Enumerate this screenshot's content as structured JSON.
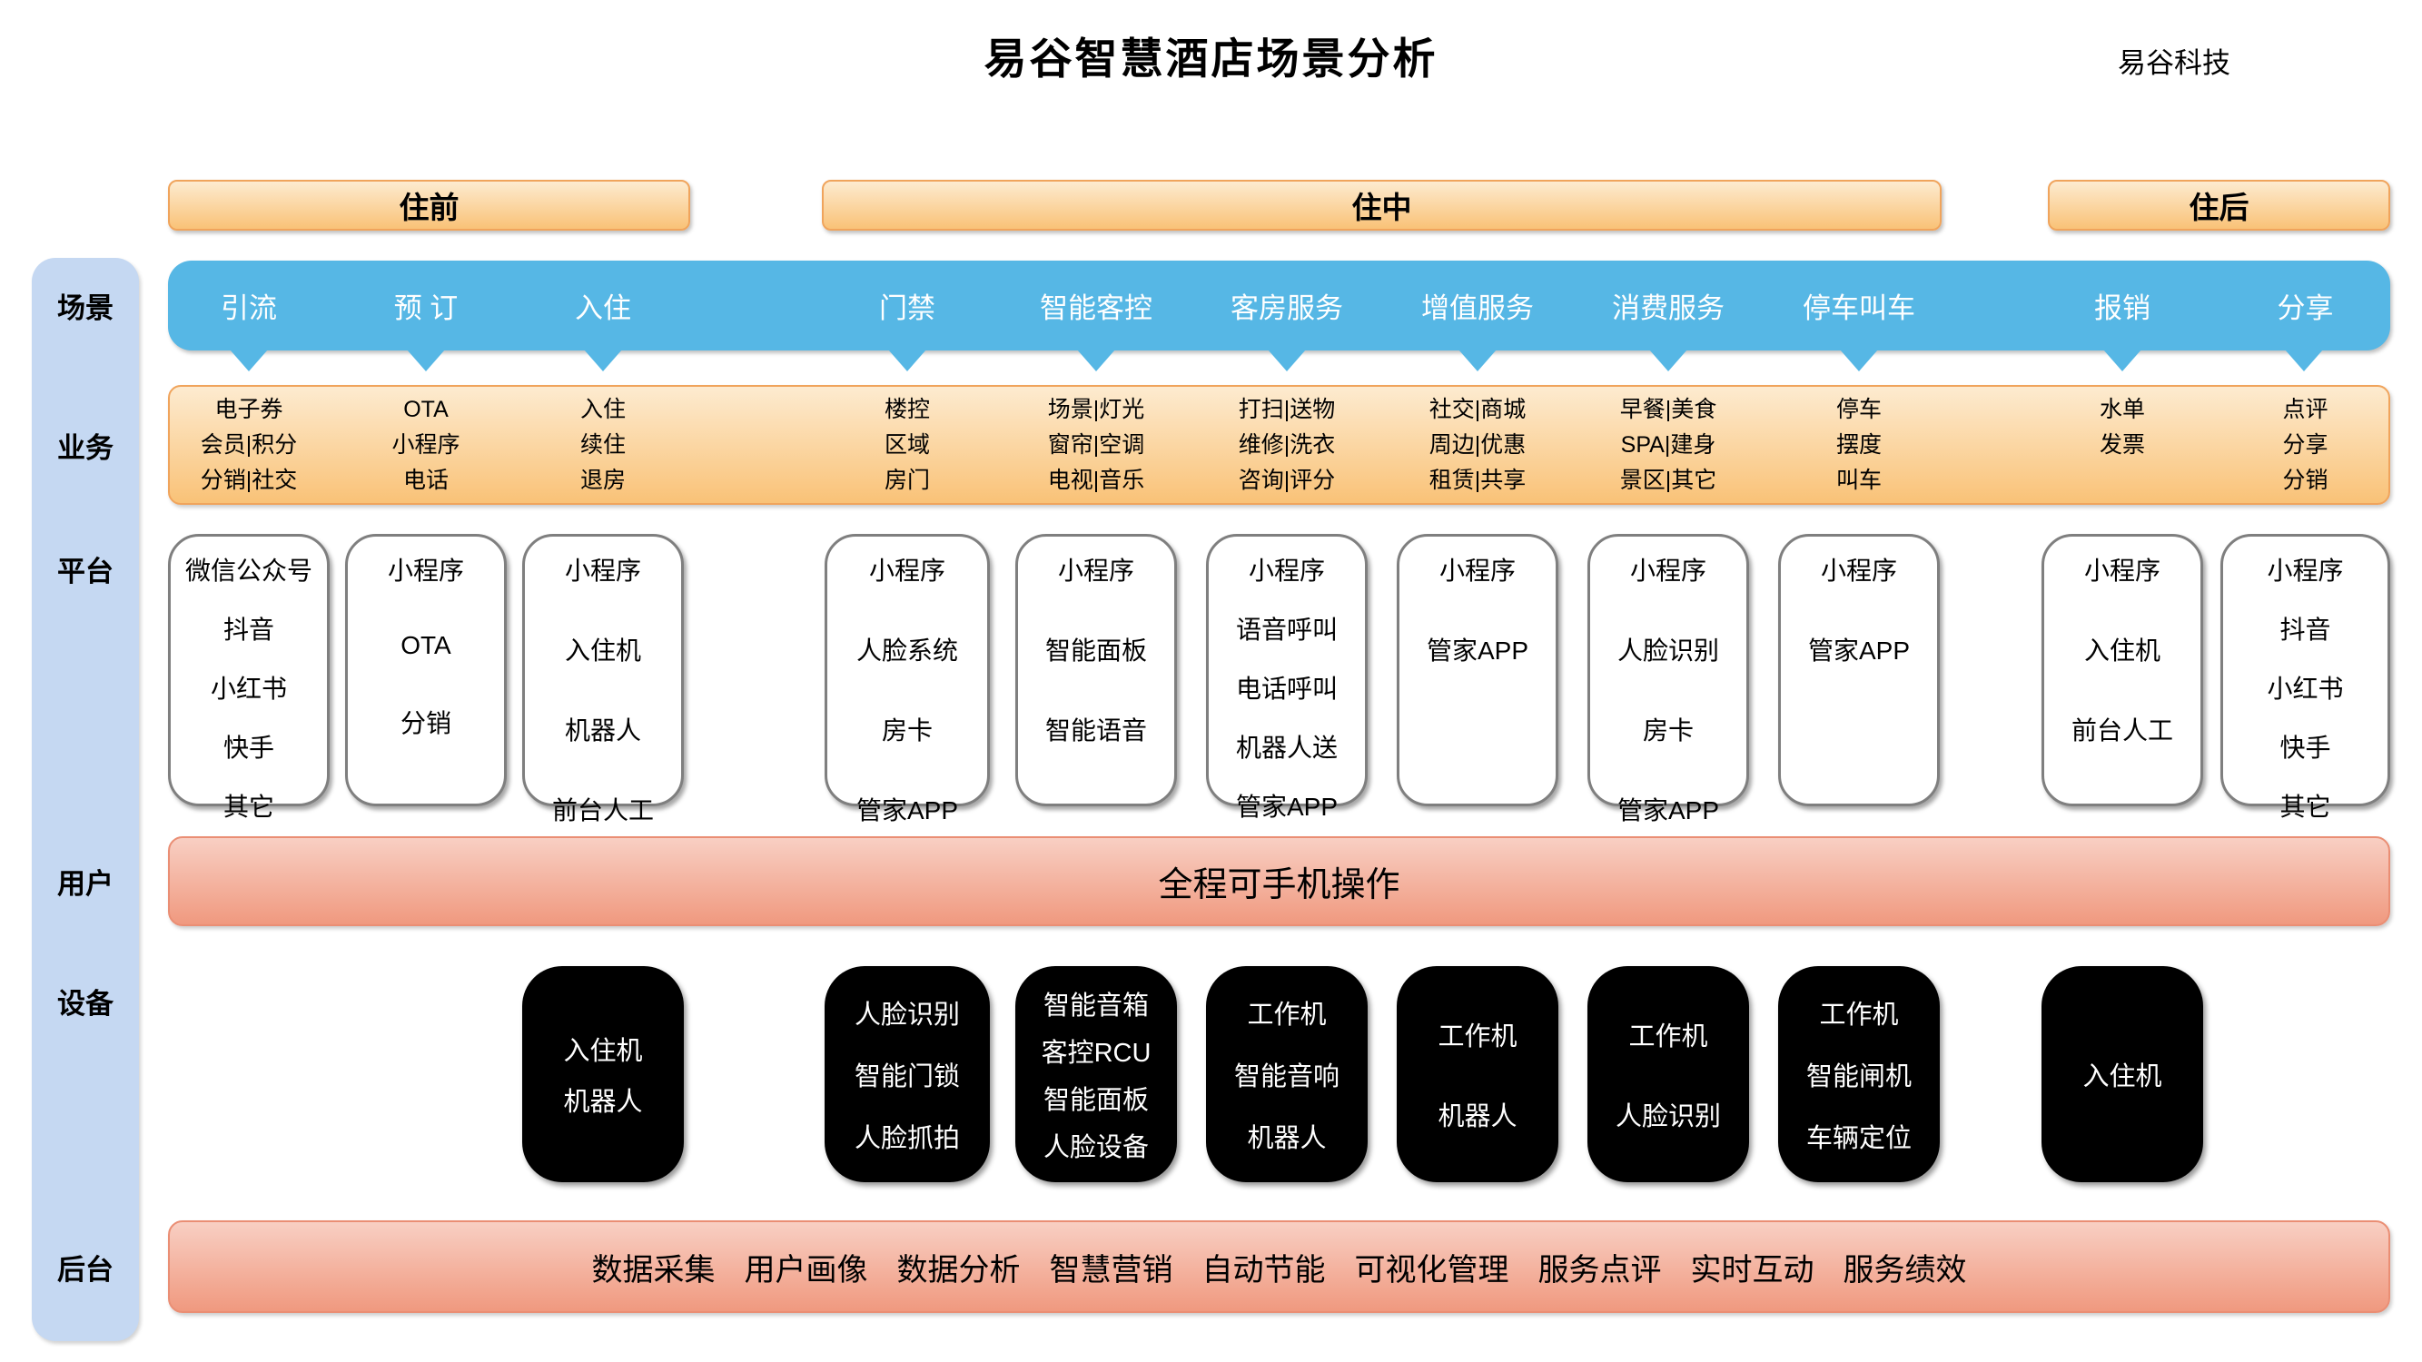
{
  "header": {
    "title": "易谷智慧酒店场景分析",
    "brand": "易谷科技"
  },
  "phases": [
    {
      "label": "住前"
    },
    {
      "label": "住中"
    },
    {
      "label": "住后"
    }
  ],
  "sidebar": {
    "rows": [
      "场景",
      "业务",
      "平台",
      "用户",
      "设备",
      "后台"
    ]
  },
  "scenarios": [
    "引流",
    "预 订",
    "入住",
    "门禁",
    "智能客控",
    "客房服务",
    "增值服务",
    "消费服务",
    "停车叫车",
    "报销",
    "分享"
  ],
  "business": [
    [
      "电子券",
      "会员|积分",
      "分销|社交"
    ],
    [
      "OTA",
      "小程序",
      "电话"
    ],
    [
      "入住",
      "续住",
      "退房"
    ],
    [
      "楼控",
      "区域",
      "房门"
    ],
    [
      "场景|灯光",
      "窗帘|空调",
      "电视|音乐"
    ],
    [
      "打扫|送物",
      "维修|洗衣",
      "咨询|评分"
    ],
    [
      "社交|商城",
      "周边|优惠",
      "租赁|共享"
    ],
    [
      "早餐|美食",
      "SPA|建身",
      "景区|其它"
    ],
    [
      "停车",
      "摆度",
      "叫车"
    ],
    [
      "水单",
      "发票"
    ],
    [
      "点评",
      "分享",
      "分销"
    ]
  ],
  "platforms": [
    [
      "微信公众号",
      "抖音",
      "小红书",
      "快手",
      "其它"
    ],
    [
      "小程序",
      "OTA",
      "分销"
    ],
    [
      "小程序",
      "入住机",
      "机器人",
      "前台人工"
    ],
    [
      "小程序",
      "人脸系统",
      "房卡",
      "管家APP"
    ],
    [
      "小程序",
      "智能面板",
      "智能语音"
    ],
    [
      "小程序",
      "语音呼叫",
      "电话呼叫",
      "机器人送",
      "管家APP"
    ],
    [
      "小程序",
      "管家APP"
    ],
    [
      "小程序",
      "人脸识别",
      "房卡",
      "管家APP"
    ],
    [
      "小程序",
      "管家APP"
    ],
    [
      "小程序",
      "入住机",
      "前台人工"
    ],
    [
      "小程序",
      "抖音",
      "小红书",
      "快手",
      "其它"
    ]
  ],
  "user_bar": "全程可手机操作",
  "devices": [
    [
      "入住机",
      "机器人"
    ],
    [
      "人脸识别",
      "智能门锁",
      "人脸抓拍"
    ],
    [
      "智能音箱",
      "客控RCU",
      "智能面板",
      "人脸设备"
    ],
    [
      "工作机",
      "智能音响",
      "机器人"
    ],
    [
      "工作机",
      "机器人"
    ],
    [
      "工作机",
      "人脸识别"
    ],
    [
      "工作机",
      "智能闸机",
      "车辆定位"
    ],
    [
      "入住机"
    ]
  ],
  "backend": [
    "数据采集",
    "用户画像",
    "数据分析",
    "智慧营销",
    "自动节能",
    "可视化管理",
    "服务点评",
    "实时互动",
    "服务绩效"
  ],
  "colors": {
    "scene_blue": "#56B7E5",
    "orange_top": "#FDEBD0",
    "orange_bottom": "#F9C277",
    "orange_border": "#F0A45C",
    "pink_top": "#F8CFC3",
    "pink_bottom": "#F0997F",
    "pink_border": "#EA8E74",
    "sidebar_blue": "#C5D8F2",
    "platform_border": "#7F7F7F",
    "device_black": "#000000"
  }
}
